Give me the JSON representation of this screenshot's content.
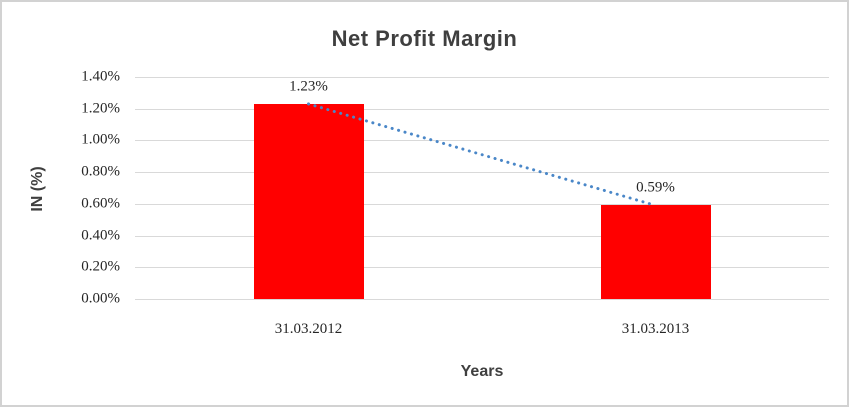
{
  "chart_data": {
    "type": "bar",
    "title": "Net Profit Margin",
    "xlabel": "Years",
    "ylabel": "IN (%)",
    "categories": [
      "31.03.2012",
      "31.03.2013"
    ],
    "series": [
      {
        "name": "Net Profit Margin",
        "values": [
          1.23,
          0.59
        ]
      }
    ],
    "data_labels": [
      "1.23%",
      "0.59%"
    ],
    "ylim": [
      0,
      1.4
    ],
    "ytick_step": 0.2,
    "ytick_labels": [
      "0.00%",
      "0.20%",
      "0.40%",
      "0.60%",
      "0.80%",
      "1.00%",
      "1.20%",
      "1.40%"
    ],
    "grid": true,
    "legend": "none",
    "trendline": {
      "type": "linear",
      "style": "dotted"
    },
    "colors": {
      "bar": "#ff0000",
      "trendline": "#4a87c8",
      "gridline": "#d9d9d9",
      "title_text": "#3f3f3f",
      "tick_text": "#262626",
      "chart_border": "#d2d2d2",
      "background": "#ffffff"
    }
  }
}
